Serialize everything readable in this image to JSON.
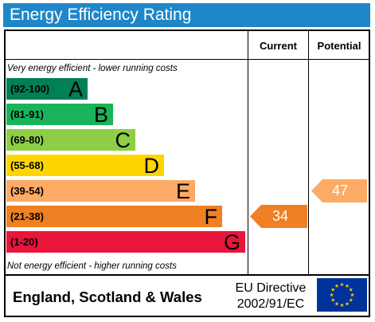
{
  "title": "Energy Efficiency Rating",
  "columns": {
    "current": "Current",
    "potential": "Potential"
  },
  "notes": {
    "top": "Very energy efficient - lower running costs",
    "bottom": "Not energy efficient - higher running costs"
  },
  "bands": [
    {
      "range": "(92-100)",
      "letter": "A",
      "color": "#008054"
    },
    {
      "range": "(81-91)",
      "letter": "B",
      "color": "#19b459"
    },
    {
      "range": "(69-80)",
      "letter": "C",
      "color": "#8dce46"
    },
    {
      "range": "(55-68)",
      "letter": "D",
      "color": "#ffd500"
    },
    {
      "range": "(39-54)",
      "letter": "E",
      "color": "#fcaa65"
    },
    {
      "range": "(21-38)",
      "letter": "F",
      "color": "#ef8023"
    },
    {
      "range": "(1-20)",
      "letter": "G",
      "color": "#e9153b"
    }
  ],
  "current": {
    "value": "34",
    "band": "F",
    "color": "#ef8023"
  },
  "potential": {
    "value": "47",
    "band": "E",
    "color": "#fcaa65"
  },
  "footer": {
    "country": "England, Scotland & Wales",
    "directive_line1": "EU Directive",
    "directive_line2": "2002/91/EC",
    "flag_icon": "eu-flag-icon"
  }
}
